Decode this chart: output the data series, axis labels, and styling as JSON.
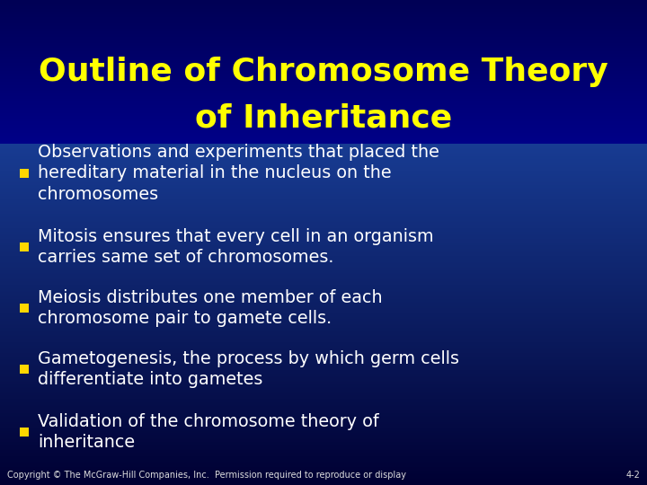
{
  "title_line1": "Outline of Chromosome Theory",
  "title_line2": "of Inheritance",
  "title_color": "#FFFF00",
  "title_fontsize": 26,
  "bullet_color": "#FFD700",
  "bullet_text_color": "#FFFFFF",
  "bullet_fontsize": 13.8,
  "bg_top_color": "#000033",
  "bg_mid_color": "#1B3A9E",
  "bg_bottom_color": "#2255BB",
  "title_bg_color": "#00006B",
  "bullets": [
    "Observations and experiments that placed the\nhereditary material in the nucleus on the\nchromosomes",
    "Mitosis ensures that every cell in an organism\ncarries same set of chromosomes.",
    "Meiosis distributes one member of each\nchromosome pair to gamete cells.",
    "Gametogenesis, the process by which germ cells\ndifferentiate into gametes",
    "Validation of the chromosome theory of\ninheritance"
  ],
  "footer_text": "Copyright © The McGraw-Hill Companies, Inc.  Permission required to reproduce or display",
  "footer_page": "4-2",
  "footer_color": "#DDDDDD",
  "footer_fontsize": 7
}
